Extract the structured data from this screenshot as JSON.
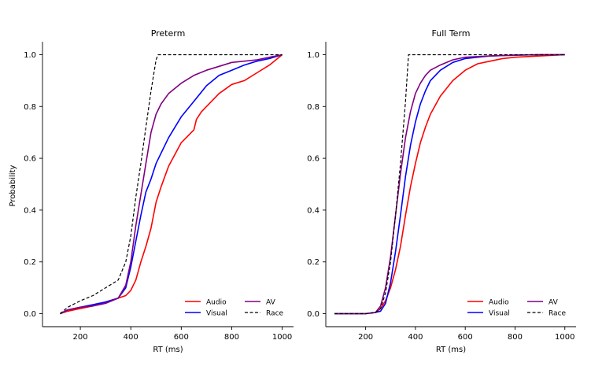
{
  "figure": {
    "ylabel": "Probability"
  },
  "chart_data": [
    {
      "type": "line",
      "title": "Preterm",
      "xlabel": "RT (ms)",
      "ylabel": "Probability",
      "xlim": [
        50,
        1045
      ],
      "ylim": [
        -0.05,
        1.05
      ],
      "xticks": [
        200,
        400,
        600,
        800,
        1000
      ],
      "yticks": [
        0.0,
        0.2,
        0.4,
        0.6,
        0.8,
        1.0
      ],
      "xtick_labels": [
        "200",
        "400",
        "600",
        "800",
        "1000"
      ],
      "ytick_labels": [
        "0.0",
        "0.2",
        "0.4",
        "0.6",
        "0.8",
        "1.0"
      ],
      "legend": {
        "placement": "lower-right",
        "columns": 2
      },
      "grid": false,
      "series": [
        {
          "name": "Audio",
          "color": "#ff0000",
          "dash": "solid",
          "x": [
            120,
            150,
            200,
            250,
            300,
            350,
            380,
            400,
            420,
            440,
            460,
            480,
            500,
            520,
            550,
            600,
            650,
            660,
            680,
            700,
            750,
            800,
            850,
            900,
            950,
            1000
          ],
          "y": [
            0.0,
            0.01,
            0.02,
            0.03,
            0.045,
            0.06,
            0.07,
            0.09,
            0.13,
            0.2,
            0.26,
            0.33,
            0.43,
            0.49,
            0.57,
            0.66,
            0.71,
            0.75,
            0.78,
            0.8,
            0.85,
            0.885,
            0.9,
            0.93,
            0.96,
            1.0
          ]
        },
        {
          "name": "Visual",
          "color": "#0000ff",
          "dash": "solid",
          "x": [
            120,
            150,
            200,
            250,
            300,
            350,
            380,
            400,
            420,
            440,
            460,
            480,
            500,
            520,
            550,
            600,
            650,
            700,
            750,
            800,
            850,
            900,
            950,
            1000
          ],
          "y": [
            0.0,
            0.015,
            0.025,
            0.035,
            0.045,
            0.06,
            0.1,
            0.18,
            0.28,
            0.38,
            0.47,
            0.52,
            0.58,
            0.62,
            0.68,
            0.76,
            0.82,
            0.88,
            0.92,
            0.94,
            0.96,
            0.975,
            0.985,
            1.0
          ]
        },
        {
          "name": "AV",
          "color": "#800080",
          "dash": "solid",
          "x": [
            120,
            150,
            200,
            250,
            300,
            350,
            380,
            400,
            420,
            440,
            460,
            480,
            500,
            520,
            550,
            600,
            650,
            700,
            750,
            800,
            850,
            900,
            950,
            1000
          ],
          "y": [
            0.0,
            0.015,
            0.025,
            0.03,
            0.04,
            0.06,
            0.11,
            0.2,
            0.34,
            0.46,
            0.58,
            0.7,
            0.77,
            0.81,
            0.85,
            0.89,
            0.92,
            0.94,
            0.955,
            0.97,
            0.975,
            0.98,
            0.99,
            1.0
          ]
        },
        {
          "name": "Race",
          "color": "#000000",
          "dash": "dashed",
          "x": [
            120,
            150,
            200,
            250,
            300,
            350,
            380,
            400,
            420,
            440,
            460,
            480,
            500,
            508,
            600,
            800,
            1000
          ],
          "y": [
            0.0,
            0.025,
            0.05,
            0.07,
            0.1,
            0.13,
            0.2,
            0.3,
            0.45,
            0.58,
            0.72,
            0.86,
            0.98,
            1.0,
            1.0,
            1.0,
            1.0
          ]
        }
      ]
    },
    {
      "type": "line",
      "title": "Full Term",
      "xlabel": "RT (ms)",
      "ylabel": "",
      "xlim": [
        40,
        1045
      ],
      "ylim": [
        -0.05,
        1.05
      ],
      "xticks": [
        200,
        400,
        600,
        800,
        1000
      ],
      "yticks": [
        0.0,
        0.2,
        0.4,
        0.6,
        0.8,
        1.0
      ],
      "xtick_labels": [
        "200",
        "400",
        "600",
        "800",
        "1000"
      ],
      "ytick_labels": [
        "0.0",
        "0.2",
        "0.4",
        "0.6",
        "0.8",
        "1.0"
      ],
      "legend": {
        "placement": "lower-right",
        "columns": 2
      },
      "grid": false,
      "series": [
        {
          "name": "Audio",
          "color": "#ff0000",
          "dash": "solid",
          "x": [
            75,
            150,
            200,
            240,
            260,
            280,
            300,
            320,
            340,
            360,
            380,
            400,
            420,
            440,
            460,
            500,
            550,
            600,
            650,
            700,
            750,
            800,
            900,
            1000
          ],
          "y": [
            0.0,
            0.0,
            0.0,
            0.005,
            0.02,
            0.05,
            0.1,
            0.17,
            0.26,
            0.38,
            0.49,
            0.58,
            0.66,
            0.72,
            0.77,
            0.84,
            0.9,
            0.94,
            0.965,
            0.975,
            0.985,
            0.99,
            0.995,
            1.0
          ]
        },
        {
          "name": "Visual",
          "color": "#0000ff",
          "dash": "solid",
          "x": [
            75,
            150,
            200,
            240,
            260,
            280,
            300,
            320,
            340,
            360,
            380,
            400,
            420,
            440,
            460,
            500,
            550,
            600,
            650,
            700,
            800,
            900,
            1000
          ],
          "y": [
            0.0,
            0.0,
            0.0,
            0.005,
            0.01,
            0.04,
            0.12,
            0.24,
            0.38,
            0.53,
            0.65,
            0.74,
            0.81,
            0.86,
            0.9,
            0.94,
            0.97,
            0.985,
            0.99,
            0.995,
            0.998,
            1.0,
            1.0
          ]
        },
        {
          "name": "AV",
          "color": "#800080",
          "dash": "solid",
          "x": [
            75,
            150,
            200,
            240,
            260,
            280,
            300,
            320,
            340,
            360,
            380,
            400,
            420,
            440,
            460,
            500,
            550,
            600,
            700,
            800,
            900,
            1000
          ],
          "y": [
            0.0,
            0.0,
            0.0,
            0.005,
            0.03,
            0.1,
            0.22,
            0.38,
            0.54,
            0.68,
            0.78,
            0.85,
            0.89,
            0.92,
            0.94,
            0.96,
            0.98,
            0.99,
            0.995,
            0.998,
            1.0,
            1.0
          ]
        },
        {
          "name": "Race",
          "color": "#000000",
          "dash": "dashed",
          "x": [
            75,
            150,
            200,
            240,
            260,
            280,
            300,
            320,
            340,
            360,
            372,
            400,
            600,
            800,
            1000
          ],
          "y": [
            0.0,
            0.0,
            0.0,
            0.005,
            0.02,
            0.08,
            0.2,
            0.38,
            0.58,
            0.82,
            1.0,
            1.0,
            1.0,
            1.0,
            1.0
          ]
        }
      ]
    }
  ]
}
